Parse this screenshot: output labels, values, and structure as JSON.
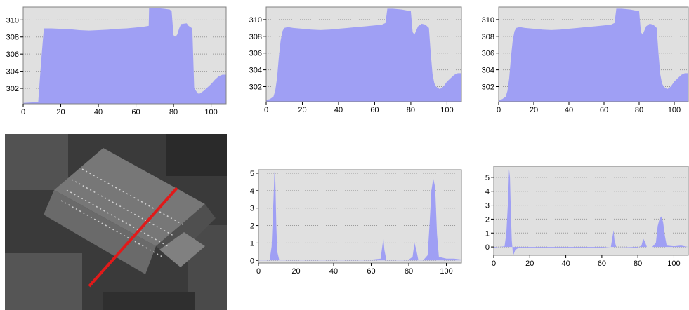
{
  "colors": {
    "fill": "#9f9ff4",
    "plot_bg": "#e0e0e0",
    "grid": "#9a9a9a",
    "line": "#e01a1a"
  },
  "chart_data": [
    {
      "type": "area",
      "xlim": [
        0,
        108
      ],
      "ylim": [
        300.2,
        311.5
      ],
      "x_ticks": [
        "0",
        "20",
        "40",
        "60",
        "80",
        "100"
      ],
      "y_ticks": [
        "302",
        "304",
        "306",
        "308",
        "310"
      ],
      "grid": true,
      "x": [
        0,
        8,
        9.5,
        11,
        15,
        20,
        25,
        30,
        35,
        40,
        45,
        50,
        55,
        60,
        64,
        66.8,
        67,
        70,
        75,
        78,
        79,
        80,
        81,
        82,
        83,
        84,
        87,
        88,
        90,
        91,
        93,
        94,
        96,
        98,
        100,
        102,
        104,
        106,
        108
      ],
      "y": [
        300.3,
        300.4,
        305.0,
        309.0,
        309.0,
        308.95,
        308.9,
        308.8,
        308.75,
        308.8,
        308.85,
        308.95,
        309.0,
        309.1,
        309.2,
        309.3,
        311.4,
        311.4,
        311.3,
        311.2,
        311.0,
        308.2,
        308.0,
        308.3,
        309.0,
        309.5,
        309.6,
        309.3,
        309.0,
        302.0,
        301.4,
        301.4,
        301.7,
        302.1,
        302.5,
        303.0,
        303.4,
        303.6,
        303.6
      ]
    },
    {
      "type": "area",
      "xlim": [
        0,
        108
      ],
      "ylim": [
        300.2,
        311.5
      ],
      "x_ticks": [
        "0",
        "20",
        "40",
        "60",
        "80",
        "100"
      ],
      "y_ticks": [
        "302",
        "304",
        "306",
        "308",
        "310"
      ],
      "grid": true,
      "x": [
        0,
        2,
        4,
        5,
        6,
        7,
        8,
        9,
        10,
        12,
        15,
        20,
        25,
        30,
        35,
        40,
        45,
        50,
        55,
        60,
        64,
        66,
        67,
        70,
        75,
        80,
        81,
        82,
        84,
        86,
        88,
        90,
        91,
        92,
        93,
        94,
        96,
        98,
        100,
        102,
        104,
        106,
        108
      ],
      "y": [
        300.4,
        300.5,
        300.8,
        301.5,
        303.0,
        305.5,
        307.5,
        308.6,
        309.0,
        309.1,
        309.0,
        308.9,
        308.8,
        308.75,
        308.8,
        308.9,
        309.0,
        309.1,
        309.2,
        309.3,
        309.4,
        309.6,
        311.3,
        311.3,
        311.2,
        311.0,
        308.5,
        308.2,
        309.2,
        309.5,
        309.4,
        309.0,
        306.0,
        303.5,
        302.4,
        302.0,
        301.7,
        302.0,
        302.6,
        303.0,
        303.4,
        303.6,
        303.6
      ]
    },
    {
      "type": "area",
      "xlim": [
        0,
        108
      ],
      "ylim": [
        300.2,
        311.5
      ],
      "x_ticks": [
        "0",
        "20",
        "40",
        "60",
        "80",
        "100"
      ],
      "y_ticks": [
        "302",
        "304",
        "306",
        "308",
        "310"
      ],
      "grid": true,
      "x": [
        0,
        2,
        4,
        5,
        6,
        7,
        8,
        9,
        10,
        12,
        15,
        20,
        25,
        30,
        35,
        40,
        45,
        50,
        55,
        60,
        64,
        66,
        67,
        70,
        75,
        80,
        81,
        82,
        84,
        86,
        88,
        90,
        91,
        92,
        93,
        94,
        96,
        98,
        100,
        102,
        104,
        106,
        108
      ],
      "y": [
        300.4,
        300.5,
        300.8,
        301.5,
        303.0,
        305.5,
        307.5,
        308.6,
        309.0,
        309.1,
        309.0,
        308.9,
        308.8,
        308.75,
        308.8,
        308.9,
        309.0,
        309.1,
        309.2,
        309.3,
        309.4,
        309.6,
        311.3,
        311.3,
        311.2,
        311.0,
        308.5,
        308.2,
        309.2,
        309.5,
        309.4,
        309.0,
        306.0,
        303.5,
        302.4,
        302.0,
        301.7,
        302.0,
        302.6,
        303.0,
        303.4,
        303.6,
        303.6
      ]
    },
    {
      "type": "area",
      "xlim": [
        0,
        108
      ],
      "ylim": [
        -0.15,
        5.2
      ],
      "x_ticks": [
        "0",
        "20",
        "40",
        "60",
        "80",
        "100"
      ],
      "y_ticks": [
        "0",
        "1",
        "2",
        "3",
        "4",
        "5"
      ],
      "grid": true,
      "x": [
        0,
        6,
        7,
        8,
        8.5,
        9,
        9.5,
        10,
        11,
        12,
        20,
        40,
        60,
        65,
        66,
        66.5,
        67,
        68,
        80,
        82,
        83,
        84,
        85,
        88,
        90,
        91,
        92,
        93,
        94,
        95,
        96,
        100,
        104,
        108
      ],
      "y": [
        0.02,
        0.05,
        0.8,
        3.5,
        5.1,
        4.5,
        2.0,
        0.5,
        0.05,
        0.02,
        0.03,
        0.02,
        0.04,
        0.1,
        0.9,
        1.25,
        0.6,
        0.05,
        0.05,
        0.2,
        1.0,
        0.6,
        0.05,
        0.05,
        0.3,
        2.0,
        4.0,
        4.7,
        4.2,
        1.5,
        0.2,
        0.1,
        0.1,
        0.05
      ]
    },
    {
      "type": "area",
      "xlim": [
        0,
        108
      ],
      "ylim": [
        -0.6,
        5.8
      ],
      "x_ticks": [
        "0",
        "20",
        "40",
        "60",
        "80",
        "100"
      ],
      "y_ticks": [
        "0",
        "1",
        "2",
        "3",
        "4",
        "5"
      ],
      "grid": true,
      "x": [
        0,
        6,
        7,
        8,
        8.5,
        9,
        9.5,
        10,
        10.5,
        11,
        12,
        14,
        20,
        40,
        60,
        65,
        66,
        66.5,
        67,
        68,
        80,
        82,
        83,
        84,
        85,
        88,
        90,
        91,
        92,
        93,
        94,
        95,
        96,
        100,
        104,
        108
      ],
      "y": [
        -0.05,
        0.05,
        1.0,
        3.5,
        5.6,
        5.0,
        2.5,
        0.5,
        -0.3,
        -0.55,
        -0.2,
        -0.05,
        -0.05,
        -0.05,
        -0.05,
        0.0,
        0.8,
        1.2,
        0.5,
        0.0,
        -0.05,
        0.1,
        0.6,
        0.35,
        0.0,
        0.0,
        0.3,
        1.5,
        2.0,
        2.2,
        1.8,
        0.8,
        0.1,
        0.05,
        0.1,
        0.0
      ]
    }
  ]
}
